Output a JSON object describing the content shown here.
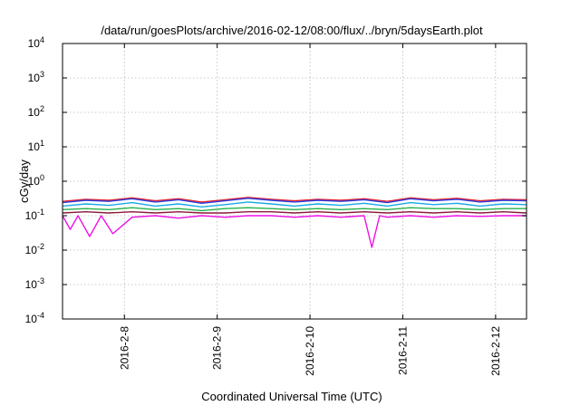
{
  "chart_data": {
    "type": "line",
    "title": "/data/run/goesPlots/archive/2016-02-12/08:00/flux/../bryn/5daysEarth.plot",
    "xlabel": "Coordinated Universal Time (UTC)",
    "ylabel": "cGy/day",
    "y_scale": "log",
    "ylim": [
      0.0001,
      10000
    ],
    "y_ticks": [
      {
        "base": "10",
        "exp": "-4",
        "value": 0.0001
      },
      {
        "base": "10",
        "exp": "-3",
        "value": 0.001
      },
      {
        "base": "10",
        "exp": "-2",
        "value": 0.01
      },
      {
        "base": "10",
        "exp": "-1",
        "value": 0.1
      },
      {
        "base": "10",
        "exp": "0",
        "value": 1
      },
      {
        "base": "10",
        "exp": "1",
        "value": 10
      },
      {
        "base": "10",
        "exp": "2",
        "value": 100
      },
      {
        "base": "10",
        "exp": "3",
        "value": 1000
      },
      {
        "base": "10",
        "exp": "4",
        "value": 10000
      }
    ],
    "xlim": [
      "2016-02-07 08:00",
      "2016-02-12 08:00"
    ],
    "x_ticks": [
      {
        "label": "2016-2-8",
        "value": "2016-02-08 00:00"
      },
      {
        "label": "2016-2-9",
        "value": "2016-02-09 00:00"
      },
      {
        "label": "2016-2-10",
        "value": "2016-02-10 00:00"
      },
      {
        "label": "2016-2-11",
        "value": "2016-02-11 00:00"
      },
      {
        "label": "2016-2-12",
        "value": "2016-02-12 00:00"
      }
    ],
    "grid": true,
    "legend": "none",
    "series": [
      {
        "color": "#e8202a",
        "x": [
          "2016-02-07 08:00",
          "2016-02-07 14:00",
          "2016-02-07 20:00",
          "2016-02-08 02:00",
          "2016-02-08 08:00",
          "2016-02-08 14:00",
          "2016-02-08 20:00",
          "2016-02-09 02:00",
          "2016-02-09 08:00",
          "2016-02-09 14:00",
          "2016-02-09 20:00",
          "2016-02-10 02:00",
          "2016-02-10 08:00",
          "2016-02-10 14:00",
          "2016-02-10 20:00",
          "2016-02-11 02:00",
          "2016-02-11 08:00",
          "2016-02-11 14:00",
          "2016-02-11 20:00",
          "2016-02-12 02:00",
          "2016-02-12 08:00"
        ],
        "values": [
          0.26,
          0.3,
          0.28,
          0.33,
          0.27,
          0.31,
          0.25,
          0.29,
          0.34,
          0.3,
          0.27,
          0.3,
          0.28,
          0.31,
          0.26,
          0.33,
          0.29,
          0.32,
          0.27,
          0.3,
          0.29
        ]
      },
      {
        "color": "#2a3de0",
        "x": [
          "2016-02-07 08:00",
          "2016-02-07 14:00",
          "2016-02-07 20:00",
          "2016-02-08 02:00",
          "2016-02-08 08:00",
          "2016-02-08 14:00",
          "2016-02-08 20:00",
          "2016-02-09 02:00",
          "2016-02-09 08:00",
          "2016-02-09 14:00",
          "2016-02-09 20:00",
          "2016-02-10 02:00",
          "2016-02-10 08:00",
          "2016-02-10 14:00",
          "2016-02-10 20:00",
          "2016-02-11 02:00",
          "2016-02-11 08:00",
          "2016-02-11 14:00",
          "2016-02-11 20:00",
          "2016-02-12 02:00",
          "2016-02-12 08:00"
        ],
        "values": [
          0.24,
          0.28,
          0.26,
          0.31,
          0.25,
          0.29,
          0.23,
          0.27,
          0.32,
          0.28,
          0.25,
          0.28,
          0.26,
          0.29,
          0.24,
          0.31,
          0.27,
          0.3,
          0.25,
          0.28,
          0.27
        ]
      },
      {
        "color": "#19a9e6",
        "x": [
          "2016-02-07 08:00",
          "2016-02-07 14:00",
          "2016-02-07 20:00",
          "2016-02-08 02:00",
          "2016-02-08 08:00",
          "2016-02-08 14:00",
          "2016-02-08 20:00",
          "2016-02-09 02:00",
          "2016-02-09 08:00",
          "2016-02-09 14:00",
          "2016-02-09 20:00",
          "2016-02-10 02:00",
          "2016-02-10 08:00",
          "2016-02-10 14:00",
          "2016-02-10 20:00",
          "2016-02-11 02:00",
          "2016-02-11 08:00",
          "2016-02-11 14:00",
          "2016-02-11 20:00",
          "2016-02-12 02:00",
          "2016-02-12 08:00"
        ],
        "values": [
          0.19,
          0.22,
          0.2,
          0.24,
          0.19,
          0.22,
          0.18,
          0.21,
          0.25,
          0.22,
          0.19,
          0.22,
          0.2,
          0.23,
          0.19,
          0.24,
          0.21,
          0.23,
          0.19,
          0.22,
          0.21
        ]
      },
      {
        "color": "#26b24a",
        "x": [
          "2016-02-07 08:00",
          "2016-02-07 14:00",
          "2016-02-07 20:00",
          "2016-02-08 02:00",
          "2016-02-08 08:00",
          "2016-02-08 14:00",
          "2016-02-08 20:00",
          "2016-02-09 02:00",
          "2016-02-09 08:00",
          "2016-02-09 14:00",
          "2016-02-09 20:00",
          "2016-02-10 02:00",
          "2016-02-10 08:00",
          "2016-02-10 14:00",
          "2016-02-10 20:00",
          "2016-02-11 02:00",
          "2016-02-11 08:00",
          "2016-02-11 14:00",
          "2016-02-11 20:00",
          "2016-02-12 02:00",
          "2016-02-12 08:00"
        ],
        "values": [
          0.15,
          0.16,
          0.15,
          0.17,
          0.15,
          0.16,
          0.14,
          0.16,
          0.17,
          0.16,
          0.15,
          0.16,
          0.15,
          0.16,
          0.15,
          0.17,
          0.16,
          0.16,
          0.15,
          0.16,
          0.16
        ]
      },
      {
        "color": "#8a1a3a",
        "x": [
          "2016-02-07 08:00",
          "2016-02-07 14:00",
          "2016-02-07 20:00",
          "2016-02-08 02:00",
          "2016-02-08 08:00",
          "2016-02-08 14:00",
          "2016-02-08 20:00",
          "2016-02-09 02:00",
          "2016-02-09 08:00",
          "2016-02-09 14:00",
          "2016-02-09 20:00",
          "2016-02-10 02:00",
          "2016-02-10 08:00",
          "2016-02-10 14:00",
          "2016-02-10 20:00",
          "2016-02-11 02:00",
          "2016-02-11 08:00",
          "2016-02-11 14:00",
          "2016-02-11 20:00",
          "2016-02-12 02:00",
          "2016-02-12 08:00"
        ],
        "values": [
          0.12,
          0.13,
          0.12,
          0.13,
          0.12,
          0.13,
          0.12,
          0.12,
          0.13,
          0.13,
          0.12,
          0.13,
          0.12,
          0.13,
          0.12,
          0.13,
          0.12,
          0.13,
          0.12,
          0.13,
          0.12
        ]
      },
      {
        "color": "#ee12e6",
        "x": [
          "2016-02-07 08:00",
          "2016-02-07 10:00",
          "2016-02-07 12:00",
          "2016-02-07 15:00",
          "2016-02-07 18:00",
          "2016-02-07 21:00",
          "2016-02-08 02:00",
          "2016-02-08 08:00",
          "2016-02-08 14:00",
          "2016-02-08 20:00",
          "2016-02-09 02:00",
          "2016-02-09 08:00",
          "2016-02-09 14:00",
          "2016-02-09 20:00",
          "2016-02-10 02:00",
          "2016-02-10 08:00",
          "2016-02-10 14:00",
          "2016-02-10 16:00",
          "2016-02-10 18:00",
          "2016-02-10 20:00",
          "2016-02-11 02:00",
          "2016-02-11 08:00",
          "2016-02-11 14:00",
          "2016-02-11 20:00",
          "2016-02-12 02:00",
          "2016-02-12 08:00"
        ],
        "values": [
          0.1,
          0.04,
          0.1,
          0.025,
          0.1,
          0.03,
          0.09,
          0.1,
          0.085,
          0.1,
          0.09,
          0.1,
          0.1,
          0.09,
          0.1,
          0.09,
          0.1,
          0.012,
          0.1,
          0.09,
          0.1,
          0.09,
          0.1,
          0.095,
          0.1,
          0.1
        ]
      }
    ]
  }
}
